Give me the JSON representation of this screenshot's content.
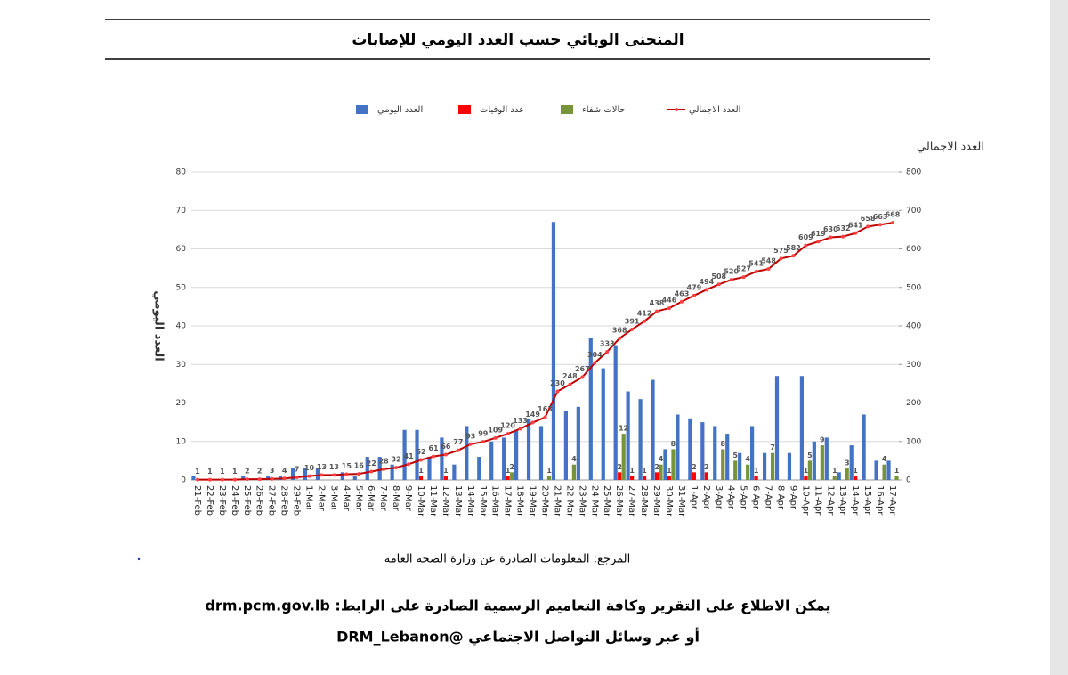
{
  "title": "المنحنى الوبائي حسب العدد اليومي للإصابات",
  "chart_data": {
    "type": "bar-line",
    "y_label": "العدد اليومي",
    "y2_label": "العدد الاجمالي",
    "categories": [
      "21-Feb",
      "22-Feb",
      "23-Feb",
      "24-Feb",
      "25-Feb",
      "26-Feb",
      "27-Feb",
      "28-Feb",
      "29-Feb",
      "1-Mar",
      "2-Mar",
      "3-Mar",
      "4-Mar",
      "5-Mar",
      "6-Mar",
      "7-Mar",
      "8-Mar",
      "9-Mar",
      "10-Mar",
      "11-Mar",
      "12-Mar",
      "13-Mar",
      "14-Mar",
      "15-Mar",
      "16-Mar",
      "17-Mar",
      "18-Mar",
      "19-Mar",
      "20-Mar",
      "21-Mar",
      "22-Mar",
      "23-Mar",
      "24-Mar",
      "25-Mar",
      "26-Mar",
      "27-Mar",
      "28-Mar",
      "29-Mar",
      "30-Mar",
      "31-Mar",
      "1-Apr",
      "2-Apr",
      "3-Apr",
      "4-Apr",
      "5-Apr",
      "6-Apr",
      "7-Apr",
      "8-Apr",
      "9-Apr",
      "10-Apr",
      "11-Apr",
      "12-Apr",
      "13-Apr",
      "14-Apr",
      "15-Apr",
      "16-Apr",
      "17-Apr"
    ],
    "series": [
      {
        "name": "العدد اليومي",
        "color": "#4472c4",
        "kind": "bar",
        "labels": false,
        "values": [
          1,
          0,
          0,
          0,
          1,
          0,
          1,
          1,
          3,
          3,
          3,
          0,
          2,
          1,
          6,
          6,
          4,
          13,
          13,
          6,
          11,
          4,
          14,
          6,
          10,
          11,
          13,
          16,
          14,
          67,
          18,
          19,
          37,
          29,
          35,
          23,
          21,
          26,
          8,
          17,
          16,
          15,
          14,
          12,
          7,
          14,
          7,
          27,
          7,
          27,
          10,
          11,
          2,
          9,
          17,
          5,
          5
        ]
      },
      {
        "name": "عدد الوفيات",
        "color": "#ff0000",
        "kind": "bar",
        "labels": true,
        "values": [
          null,
          null,
          null,
          null,
          null,
          null,
          null,
          null,
          null,
          null,
          null,
          null,
          null,
          null,
          null,
          null,
          null,
          null,
          1,
          null,
          1,
          null,
          null,
          null,
          null,
          1,
          null,
          null,
          null,
          null,
          null,
          null,
          null,
          null,
          2,
          1,
          1,
          2,
          1,
          null,
          2,
          2,
          null,
          null,
          null,
          1,
          null,
          null,
          null,
          1,
          null,
          null,
          null,
          1,
          null,
          null,
          null
        ]
      },
      {
        "name": "حالات شفاء",
        "color": "#77933c",
        "kind": "bar",
        "labels": true,
        "values": [
          null,
          null,
          null,
          null,
          null,
          null,
          null,
          null,
          null,
          null,
          null,
          null,
          null,
          null,
          null,
          null,
          null,
          null,
          null,
          null,
          null,
          null,
          null,
          null,
          null,
          2,
          null,
          null,
          1,
          null,
          4,
          null,
          null,
          null,
          12,
          null,
          null,
          4,
          8,
          null,
          null,
          null,
          8,
          5,
          4,
          null,
          7,
          null,
          null,
          5,
          9,
          1,
          3,
          null,
          null,
          4,
          1
        ]
      },
      {
        "name": "العدد الاجمالي",
        "color": "#c00000",
        "kind": "line",
        "axis": "y2",
        "labels": true,
        "values": [
          1,
          1,
          1,
          1,
          2,
          2,
          3,
          4,
          7,
          10,
          13,
          13,
          15,
          16,
          22,
          28,
          32,
          41,
          52,
          61,
          66,
          77,
          93,
          99,
          109,
          120,
          133,
          149,
          163,
          230,
          248,
          267,
          304,
          333,
          368,
          391,
          412,
          438,
          446,
          463,
          479,
          494,
          508,
          520,
          527,
          541,
          548,
          575,
          582,
          609,
          619,
          630,
          632,
          641,
          658,
          663,
          668
        ]
      }
    ],
    "ylim": [
      0,
      80
    ],
    "yticks": [
      0,
      10,
      20,
      30,
      40,
      50,
      60,
      70,
      80
    ],
    "y2lim": [
      0,
      800
    ],
    "y2ticks": [
      0,
      100,
      200,
      300,
      400,
      500,
      600,
      700,
      800
    ],
    "grid": true
  },
  "source": "المرجع: المعلومات الصادرة عن وزارة الصحة العامة",
  "footer": [
    "يمكن الاطلاع على التقرير وكافة التعاميم الرسمية الصادرة على الرابط: drm.pcm.gov.lb",
    "أو عبر وسائل التواصل الاجتماعي @DRM_Lebanon"
  ]
}
